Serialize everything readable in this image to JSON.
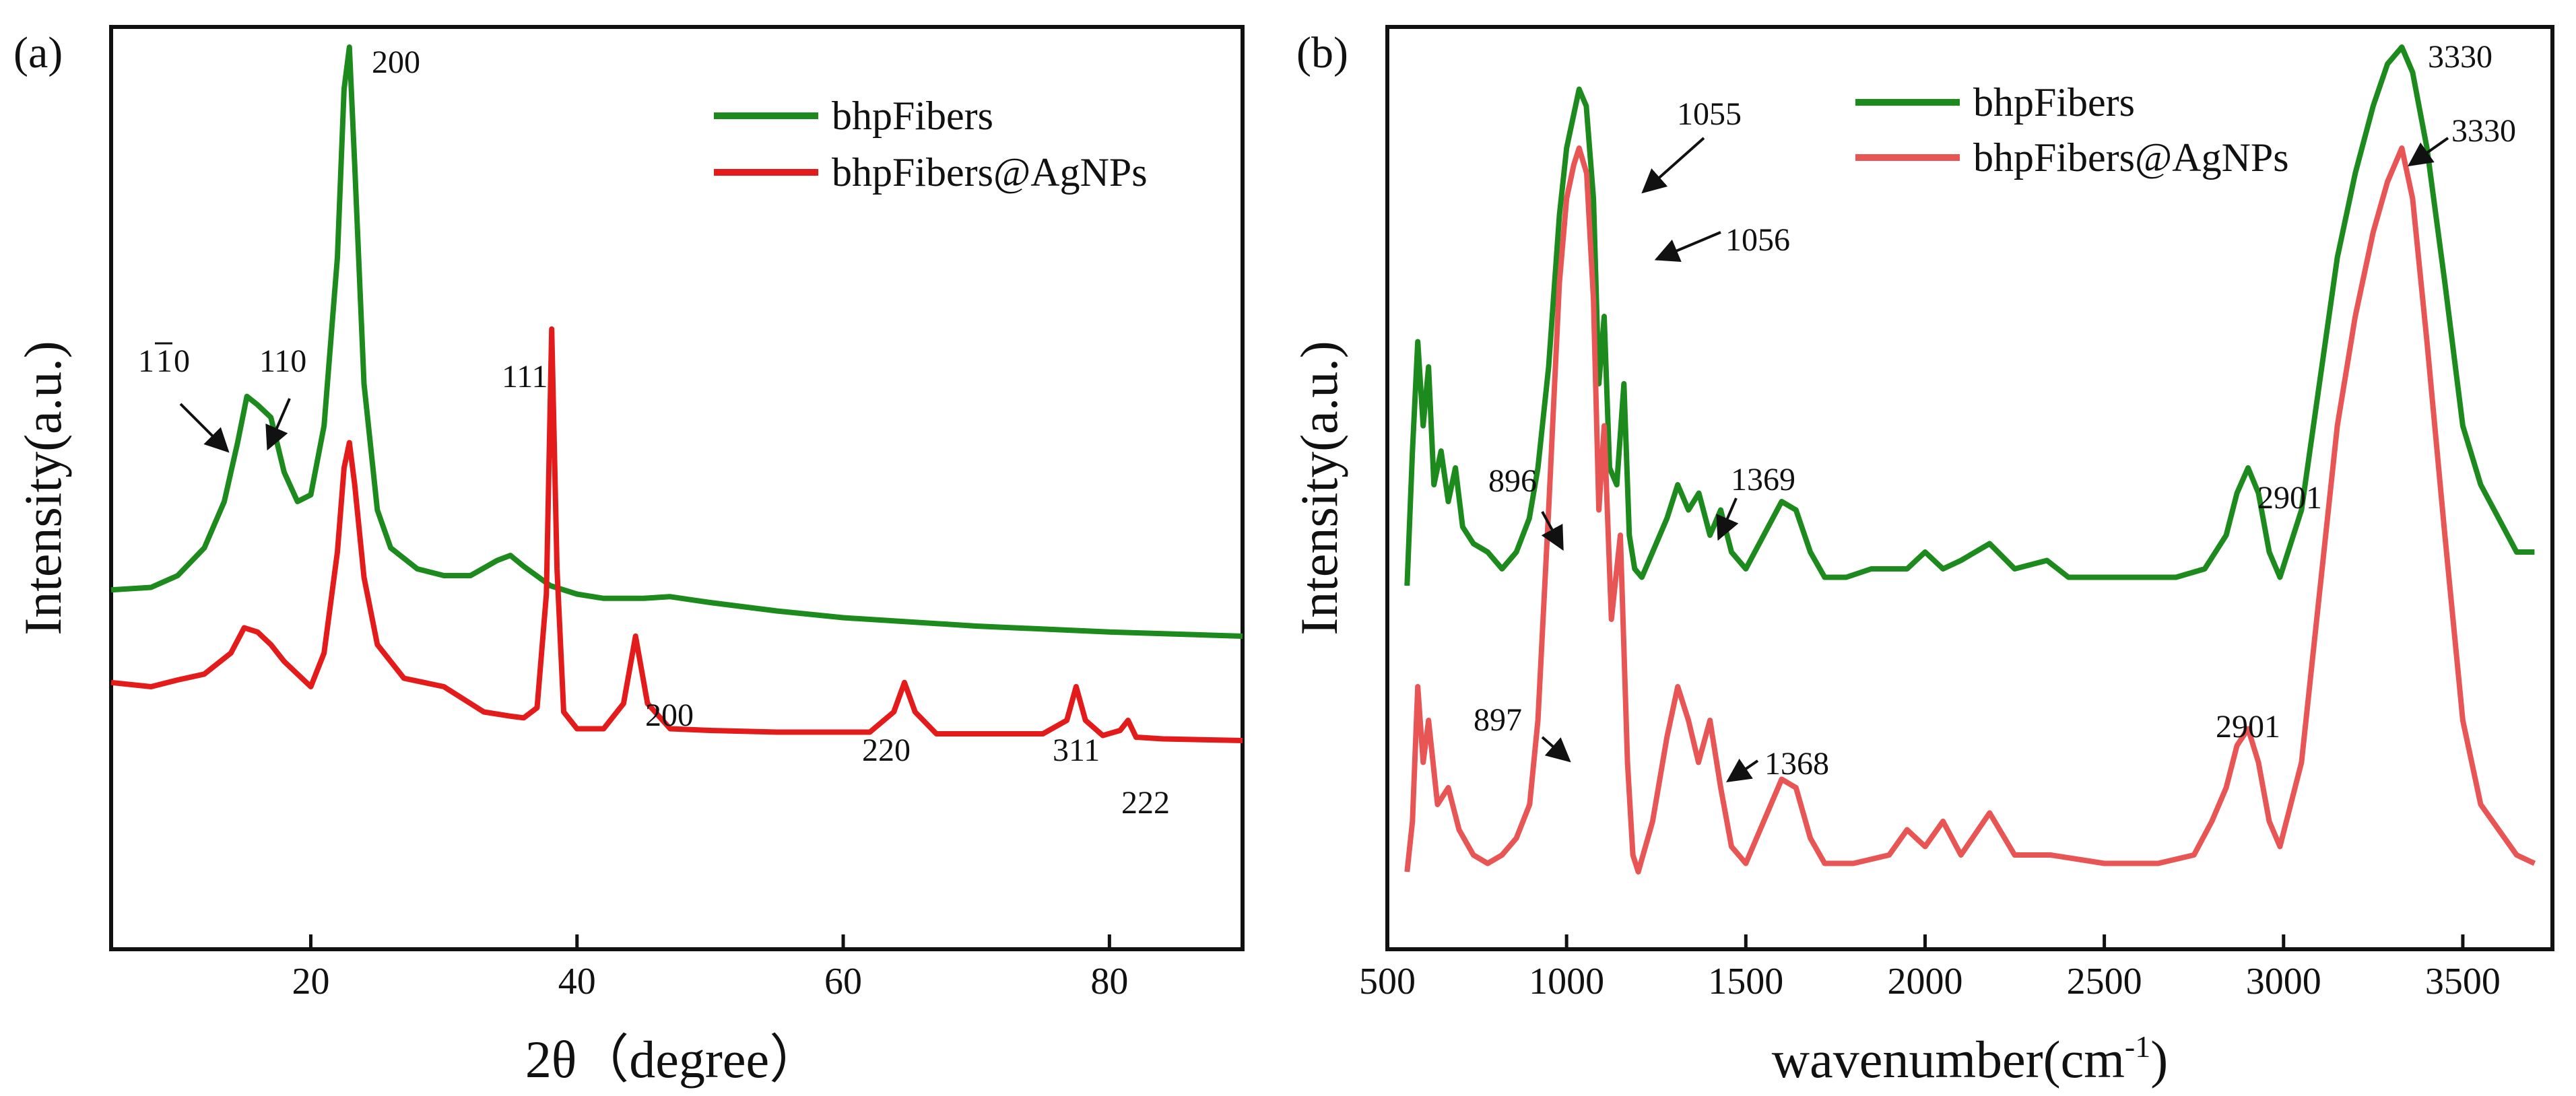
{
  "figure": {
    "colors": {
      "green": "#1c8a1c",
      "red": "#e31b1b",
      "light_red": "#e85555",
      "axis": "#111111"
    }
  },
  "chart_data": [
    {
      "type": "line",
      "panel_label": "(a)",
      "xlabel": "2θ（degree）",
      "ylabel": "Intensity(a.u.)",
      "xlim": [
        5,
        90
      ],
      "ylim": [
        0,
        1
      ],
      "x_ticks": [
        20,
        40,
        60,
        80
      ],
      "y_ticks_shown": false,
      "legend": {
        "position": "top-right",
        "entries": [
          "bhpFibers",
          "bhpFibers@AgNPs"
        ]
      },
      "series": [
        {
          "name": "bhpFibers",
          "color": "#1c8a1c",
          "x": [
            5,
            8,
            10,
            12,
            13.5,
            14.5,
            15.2,
            16,
            17,
            18,
            19,
            20,
            21,
            22,
            22.5,
            22.9,
            23.3,
            24,
            25,
            26,
            28,
            30,
            32,
            34,
            35,
            36,
            38,
            40,
            42,
            45,
            47,
            50,
            55,
            60,
            70,
            80,
            90
          ],
          "y": [
            0.355,
            0.358,
            0.372,
            0.405,
            0.46,
            0.53,
            0.585,
            0.575,
            0.56,
            0.495,
            0.46,
            0.468,
            0.55,
            0.75,
            0.95,
            1.0,
            0.86,
            0.6,
            0.45,
            0.405,
            0.38,
            0.372,
            0.372,
            0.39,
            0.396,
            0.383,
            0.36,
            0.35,
            0.345,
            0.345,
            0.347,
            0.34,
            0.33,
            0.322,
            0.312,
            0.305,
            0.3
          ]
        },
        {
          "name": "bhpFibers@AgNPs",
          "color": "#e31b1b",
          "x": [
            5,
            8,
            10,
            12,
            14,
            15,
            16,
            17,
            18,
            20,
            21,
            22,
            22.5,
            22.9,
            23.3,
            24,
            25,
            27,
            30,
            33,
            35,
            36,
            37,
            37.7,
            38.1,
            38.5,
            39,
            40,
            42,
            43.5,
            44.4,
            45.3,
            47,
            50,
            55,
            60,
            62,
            63.8,
            64.6,
            65.4,
            67,
            70,
            75,
            76.8,
            77.5,
            78.2,
            79.5,
            80.8,
            81.4,
            82,
            84,
            90
          ],
          "y": [
            0.245,
            0.24,
            0.248,
            0.255,
            0.28,
            0.31,
            0.305,
            0.29,
            0.27,
            0.24,
            0.28,
            0.4,
            0.5,
            0.53,
            0.48,
            0.37,
            0.29,
            0.25,
            0.24,
            0.21,
            0.205,
            0.203,
            0.215,
            0.35,
            0.665,
            0.38,
            0.21,
            0.19,
            0.19,
            0.22,
            0.3,
            0.22,
            0.19,
            0.188,
            0.186,
            0.186,
            0.186,
            0.21,
            0.245,
            0.21,
            0.184,
            0.184,
            0.184,
            0.2,
            0.24,
            0.2,
            0.182,
            0.188,
            0.2,
            0.18,
            0.178,
            0.176
          ]
        }
      ],
      "annotations": [
        {
          "text": "200",
          "series": "bhpFibers",
          "target_x": 22.9
        },
        {
          "text": "1",
          "bar_text": "1",
          "tail": "0",
          "series": "bhpFibers",
          "target_x": 15.2,
          "arrow": true,
          "id": "1-10"
        },
        {
          "text": "110",
          "series": "bhpFibers",
          "target_x": 16.5,
          "arrow": true
        },
        {
          "text": "111",
          "series": "bhpFibers@AgNPs",
          "target_x": 38.1
        },
        {
          "text": "200",
          "series": "bhpFibers@AgNPs",
          "target_x": 44.4
        },
        {
          "text": "220",
          "series": "bhpFibers@AgNPs",
          "target_x": 64.6
        },
        {
          "text": "311",
          "series": "bhpFibers@AgNPs",
          "target_x": 77.5
        },
        {
          "text": "222",
          "series": "bhpFibers@AgNPs",
          "target_x": 81.4
        }
      ]
    },
    {
      "type": "line",
      "panel_label": "(b)",
      "xlabel": "wavenumber(cm",
      "xlabel_superscript": "-1",
      "xlabel_close": ")",
      "ylabel": "Intensity(a.u.)",
      "xlim": [
        500,
        3750
      ],
      "ylim": [
        0,
        1
      ],
      "x_ticks": [
        500,
        1000,
        1500,
        2000,
        2500,
        3000,
        3500
      ],
      "y_ticks_shown": false,
      "legend": {
        "position": "top-center",
        "entries": [
          "bhpFibers",
          "bhpFibers@AgNPs"
        ]
      },
      "series": [
        {
          "name": "bhpFibers",
          "color": "#1c8a1c",
          "x": [
            555,
            570,
            585,
            600,
            615,
            630,
            650,
            670,
            690,
            710,
            740,
            780,
            820,
            860,
            896,
            920,
            950,
            980,
            1000,
            1020,
            1035,
            1055,
            1075,
            1090,
            1105,
            1120,
            1140,
            1160,
            1175,
            1190,
            1210,
            1240,
            1280,
            1310,
            1340,
            1369,
            1400,
            1430,
            1460,
            1500,
            1550,
            1600,
            1640,
            1680,
            1720,
            1780,
            1850,
            1950,
            2000,
            2050,
            2100,
            2180,
            2250,
            2340,
            2400,
            2500,
            2600,
            2700,
            2780,
            2840,
            2870,
            2901,
            2930,
            2960,
            2990,
            3050,
            3100,
            3150,
            3200,
            3250,
            3290,
            3330,
            3360,
            3400,
            3450,
            3500,
            3550,
            3600,
            3650,
            3700
          ],
          "y": [
            0.36,
            0.52,
            0.65,
            0.55,
            0.62,
            0.48,
            0.52,
            0.46,
            0.5,
            0.43,
            0.41,
            0.4,
            0.38,
            0.4,
            0.44,
            0.5,
            0.62,
            0.8,
            0.88,
            0.92,
            0.95,
            0.93,
            0.82,
            0.6,
            0.68,
            0.5,
            0.48,
            0.6,
            0.42,
            0.38,
            0.37,
            0.4,
            0.44,
            0.48,
            0.45,
            0.47,
            0.42,
            0.45,
            0.4,
            0.38,
            0.42,
            0.46,
            0.45,
            0.4,
            0.37,
            0.37,
            0.38,
            0.38,
            0.4,
            0.38,
            0.39,
            0.41,
            0.38,
            0.39,
            0.37,
            0.37,
            0.37,
            0.37,
            0.38,
            0.42,
            0.47,
            0.5,
            0.47,
            0.4,
            0.37,
            0.45,
            0.6,
            0.75,
            0.85,
            0.93,
            0.98,
            1.0,
            0.97,
            0.88,
            0.72,
            0.55,
            0.48,
            0.44,
            0.4,
            0.4
          ]
        },
        {
          "name": "bhpFibers@AgNPs",
          "color": "#e85555",
          "x": [
            555,
            570,
            585,
            600,
            615,
            640,
            670,
            700,
            740,
            780,
            820,
            860,
            897,
            920,
            950,
            980,
            1000,
            1020,
            1035,
            1056,
            1075,
            1090,
            1105,
            1125,
            1150,
            1170,
            1185,
            1200,
            1240,
            1280,
            1310,
            1340,
            1368,
            1400,
            1430,
            1460,
            1500,
            1550,
            1600,
            1640,
            1680,
            1720,
            1800,
            1900,
            1950,
            2000,
            2050,
            2100,
            2180,
            2250,
            2350,
            2500,
            2650,
            2750,
            2800,
            2840,
            2870,
            2901,
            2930,
            2960,
            2990,
            3050,
            3100,
            3150,
            3200,
            3250,
            3290,
            3330,
            3360,
            3400,
            3450,
            3500,
            3550,
            3600,
            3650,
            3700
          ],
          "y": [
            0.02,
            0.08,
            0.24,
            0.15,
            0.2,
            0.1,
            0.12,
            0.07,
            0.04,
            0.03,
            0.04,
            0.06,
            0.1,
            0.2,
            0.45,
            0.72,
            0.82,
            0.86,
            0.88,
            0.85,
            0.7,
            0.45,
            0.55,
            0.32,
            0.42,
            0.15,
            0.04,
            0.02,
            0.08,
            0.18,
            0.24,
            0.2,
            0.15,
            0.2,
            0.12,
            0.05,
            0.03,
            0.08,
            0.13,
            0.12,
            0.06,
            0.03,
            0.03,
            0.04,
            0.07,
            0.05,
            0.08,
            0.04,
            0.09,
            0.04,
            0.04,
            0.03,
            0.03,
            0.04,
            0.08,
            0.12,
            0.17,
            0.19,
            0.15,
            0.08,
            0.05,
            0.15,
            0.35,
            0.55,
            0.68,
            0.78,
            0.84,
            0.88,
            0.82,
            0.65,
            0.42,
            0.2,
            0.1,
            0.07,
            0.04,
            0.03
          ]
        }
      ],
      "annotations": [
        {
          "text": "1055",
          "series": "bhpFibers",
          "target_x": 1050,
          "arrow": true
        },
        {
          "text": "1056",
          "series": "bhpFibers@AgNPs",
          "target_x": 1056,
          "arrow": true
        },
        {
          "text": "896",
          "series": "bhpFibers",
          "target_x": 896,
          "arrow": true
        },
        {
          "text": "1369",
          "series": "bhpFibers",
          "target_x": 1369,
          "arrow": true
        },
        {
          "text": "2901",
          "series": "bhpFibers",
          "target_x": 2901
        },
        {
          "text": "3330",
          "series": "bhpFibers",
          "target_x": 3330
        },
        {
          "text": "3330",
          "series": "bhpFibers@AgNPs",
          "target_x": 3330,
          "arrow": true
        },
        {
          "text": "897",
          "series": "bhpFibers@AgNPs",
          "target_x": 897,
          "arrow": true
        },
        {
          "text": "1368",
          "series": "bhpFibers@AgNPs",
          "target_x": 1368,
          "arrow": true
        },
        {
          "text": "2901",
          "series": "bhpFibers@AgNPs",
          "target_x": 2901
        }
      ]
    }
  ]
}
